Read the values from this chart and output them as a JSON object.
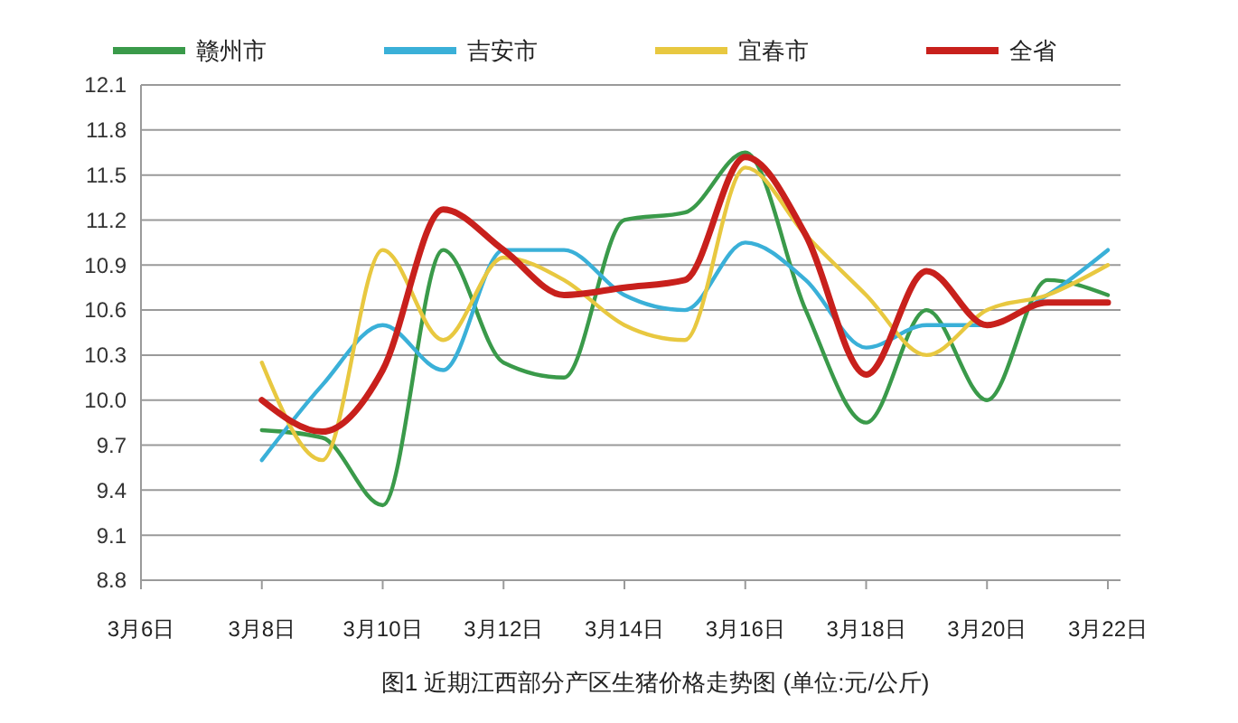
{
  "chart_data": {
    "type": "line",
    "categories": [
      "3月6日",
      null,
      "3月8日",
      null,
      "3月10日",
      null,
      "3月12日",
      null,
      "3月14日",
      null,
      "3月16日",
      null,
      "3月18日",
      null,
      "3月20日",
      null,
      "3月22日"
    ],
    "series": [
      {
        "name": "赣州市",
        "color": "#3a9a4a",
        "values": [
          null,
          null,
          9.8,
          9.75,
          9.3,
          11.0,
          10.25,
          10.15,
          11.2,
          11.25,
          11.65,
          10.6,
          9.85,
          10.6,
          10.0,
          10.8,
          10.7
        ]
      },
      {
        "name": "吉安市",
        "color": "#3ab0d8",
        "values": [
          null,
          null,
          9.6,
          10.1,
          10.5,
          10.2,
          11.0,
          11.0,
          10.7,
          10.6,
          11.05,
          10.8,
          10.35,
          10.5,
          10.5,
          10.7,
          11.0
        ]
      },
      {
        "name": "宜春市",
        "color": "#e8c840",
        "values": [
          null,
          null,
          10.25,
          9.6,
          11.0,
          10.4,
          10.95,
          10.8,
          10.5,
          10.4,
          11.55,
          11.1,
          10.7,
          10.3,
          10.6,
          10.7,
          10.9
        ]
      },
      {
        "name": "全省",
        "color": "#c8201c",
        "values": [
          null,
          null,
          10.0,
          9.79,
          10.2,
          11.27,
          11.0,
          10.7,
          10.75,
          10.8,
          11.62,
          11.1,
          10.17,
          10.86,
          10.5,
          10.65,
          10.65
        ]
      }
    ],
    "ylim": [
      8.8,
      12.1
    ],
    "yticks": [
      {
        "value": 8.8,
        "label": "8.8"
      },
      {
        "value": 9.1,
        "label": "9.1"
      },
      {
        "value": 9.4,
        "label": "9.4"
      },
      {
        "value": 9.7,
        "label": "9.7"
      },
      {
        "value": 10.0,
        "label": "10.0"
      },
      {
        "value": 10.3,
        "label": "10.3"
      },
      {
        "value": 10.6,
        "label": "10.6"
      },
      {
        "value": 10.9,
        "label": "10.9"
      },
      {
        "value": 11.2,
        "label": "11.2"
      },
      {
        "value": 11.5,
        "label": "11.5"
      },
      {
        "value": 11.8,
        "label": "11.8"
      },
      {
        "value": 12.1,
        "label": "12.1"
      }
    ],
    "grid": "y",
    "legend": "top",
    "marker": "none",
    "line_style": "solid",
    "annotations": [
      "图1  近期江西部分产区生猪价格走势图    (单位:元/公斤)"
    ]
  }
}
